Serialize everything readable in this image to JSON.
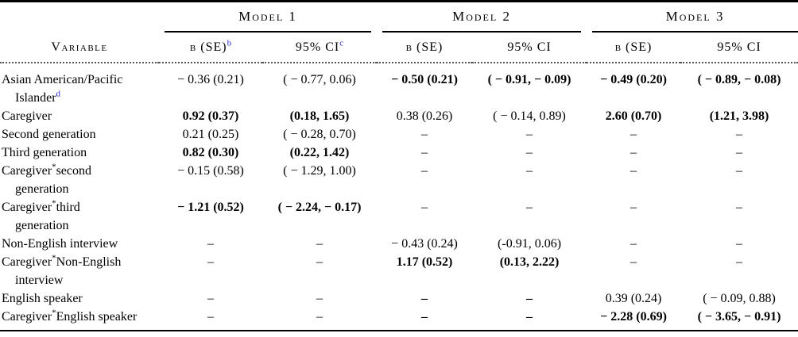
{
  "colors": {
    "superscript_blue": "#2323cc",
    "rule_black": "#000000"
  },
  "table": {
    "variable_header": "Variable",
    "models": [
      {
        "label": "Model 1",
        "b_se": "b (SE)",
        "b_se_sup": "b",
        "ci": "95% CI",
        "ci_sup": "c"
      },
      {
        "label": "Model 2",
        "b_se": "b (SE)",
        "b_se_sup": "",
        "ci": "95% CI",
        "ci_sup": ""
      },
      {
        "label": "Model 3",
        "b_se": "b (SE)",
        "b_se_sup": "",
        "ci": "95% CI",
        "ci_sup": ""
      }
    ],
    "rows": [
      {
        "v": [
          "Asian American/Pacific\nIslander",
          "d",
          ""
        ],
        "sup_blue": true,
        "cells": [
          {
            "t": "− 0.36 (0.21)"
          },
          {
            "t": "( − 0.77, 0.06)"
          },
          {
            "t": "− 0.50 (0.21)",
            "b": true
          },
          {
            "t": "( − 0.91, − 0.09)",
            "b": true
          },
          {
            "t": "− 0.49 (0.20)",
            "b": true
          },
          {
            "t": "( − 0.89, − 0.08)",
            "b": true
          }
        ]
      },
      {
        "v": [
          "Caregiver",
          "",
          ""
        ],
        "cells": [
          {
            "t": "0.92 (0.37)",
            "b": true
          },
          {
            "t": "(0.18, 1.65)",
            "b": true
          },
          {
            "t": "0.38 (0.26)"
          },
          {
            "t": "( − 0.14, 0.89)"
          },
          {
            "t": "2.60 (0.70)",
            "b": true
          },
          {
            "t": "(1.21, 3.98)",
            "b": true
          }
        ]
      },
      {
        "v": [
          "Second generation",
          "",
          ""
        ],
        "cells": [
          {
            "t": "0.21 (0.25)"
          },
          {
            "t": "( − 0.28, 0.70)"
          },
          {
            "t": "–"
          },
          {
            "t": "–"
          },
          {
            "t": "–"
          },
          {
            "t": "–"
          }
        ]
      },
      {
        "v": [
          "Third generation",
          "",
          ""
        ],
        "cells": [
          {
            "t": "0.82 (0.30)",
            "b": true
          },
          {
            "t": "(0.22, 1.42)",
            "b": true
          },
          {
            "t": "–"
          },
          {
            "t": "–"
          },
          {
            "t": "–"
          },
          {
            "t": "–"
          }
        ]
      },
      {
        "v": [
          "Caregiver",
          "*",
          "second\ngeneration"
        ],
        "cells": [
          {
            "t": "− 0.15 (0.58)"
          },
          {
            "t": "( − 1.29, 1.00)"
          },
          {
            "t": "–"
          },
          {
            "t": "–"
          },
          {
            "t": "–"
          },
          {
            "t": "–"
          }
        ]
      },
      {
        "v": [
          "Caregiver",
          "*",
          "third\ngeneration"
        ],
        "cells": [
          {
            "t": "− 1.21 (0.52)",
            "b": true
          },
          {
            "t": "( − 2.24, − 0.17)",
            "b": true
          },
          {
            "t": "–"
          },
          {
            "t": "–"
          },
          {
            "t": "–"
          },
          {
            "t": "–"
          }
        ]
      },
      {
        "v": [
          "Non-English interview",
          "",
          ""
        ],
        "cells": [
          {
            "t": "–"
          },
          {
            "t": "–"
          },
          {
            "t": "− 0.43 (0.24)"
          },
          {
            "t": "(-0.91, 0.06)"
          },
          {
            "t": "–"
          },
          {
            "t": "–"
          }
        ]
      },
      {
        "v": [
          "Caregiver",
          "*",
          "Non-English\ninterview"
        ],
        "cells": [
          {
            "t": "–"
          },
          {
            "t": "–"
          },
          {
            "t": "1.17 (0.52)",
            "b": true
          },
          {
            "t": "(0.13, 2.22)",
            "b": true
          },
          {
            "t": "–"
          },
          {
            "t": "–"
          }
        ]
      },
      {
        "v": [
          "English speaker",
          "",
          ""
        ],
        "cells": [
          {
            "t": "–"
          },
          {
            "t": "–"
          },
          {
            "t": "–",
            "b": true
          },
          {
            "t": "–",
            "b": true
          },
          {
            "t": "0.39 (0.24)"
          },
          {
            "t": "( − 0.09, 0.88)"
          }
        ]
      },
      {
        "v": [
          "Caregiver",
          "*",
          "English speaker"
        ],
        "cells": [
          {
            "t": "–"
          },
          {
            "t": "–"
          },
          {
            "t": "–",
            "b": true
          },
          {
            "t": "–",
            "b": true
          },
          {
            "t": "− 2.28 (0.69)",
            "b": true
          },
          {
            "t": "( − 3.65, − 0.91)",
            "b": true
          }
        ]
      }
    ]
  }
}
